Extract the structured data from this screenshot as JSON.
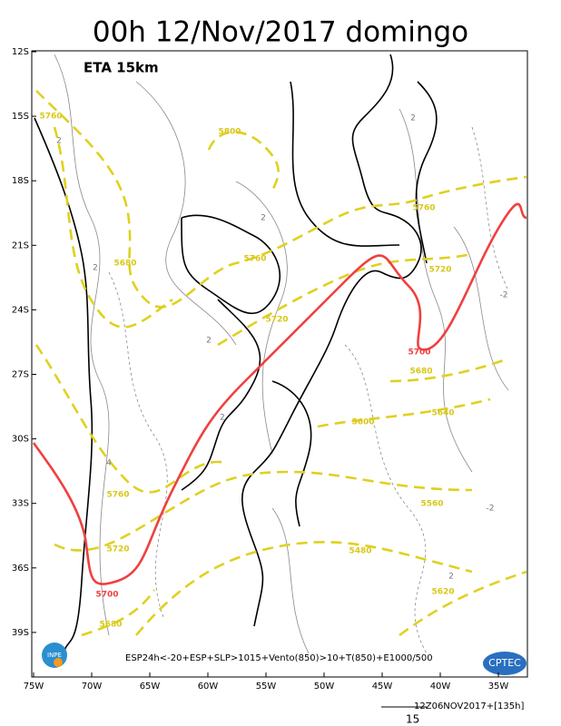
{
  "header": {
    "title": "00h 12/Nov/2017 domingo",
    "model": "ETA 15km"
  },
  "lat_labels": [
    "12S",
    "15S",
    "18S",
    "21S",
    "24S",
    "27S",
    "30S",
    "33S",
    "36S",
    "39S"
  ],
  "lon_labels": [
    "75W",
    "70W",
    "65W",
    "60W",
    "55W",
    "50W",
    "45W",
    "40W",
    "35W"
  ],
  "contour_labels": [
    "5760",
    "5800",
    "5760",
    "5680",
    "5760",
    "5720",
    "5720",
    "5680",
    "5600",
    "5640",
    "5760",
    "5560",
    "5720",
    "5480",
    "5620",
    "5680"
  ],
  "red_labels": [
    "5700",
    "5700"
  ],
  "gray_labels": [
    "2",
    "2",
    "2",
    "-2",
    "2",
    "-2",
    "2",
    "4",
    "2",
    "2"
  ],
  "footer": {
    "description": "ESP24h<-20+ESP+SLP>1015+Vento(850)>10+T(850)+E1000/500",
    "run": "12Z06NOV2017+[135h]",
    "vector_scale": "15"
  },
  "logos": {
    "left": "INPE",
    "right": "CPTEC"
  }
}
